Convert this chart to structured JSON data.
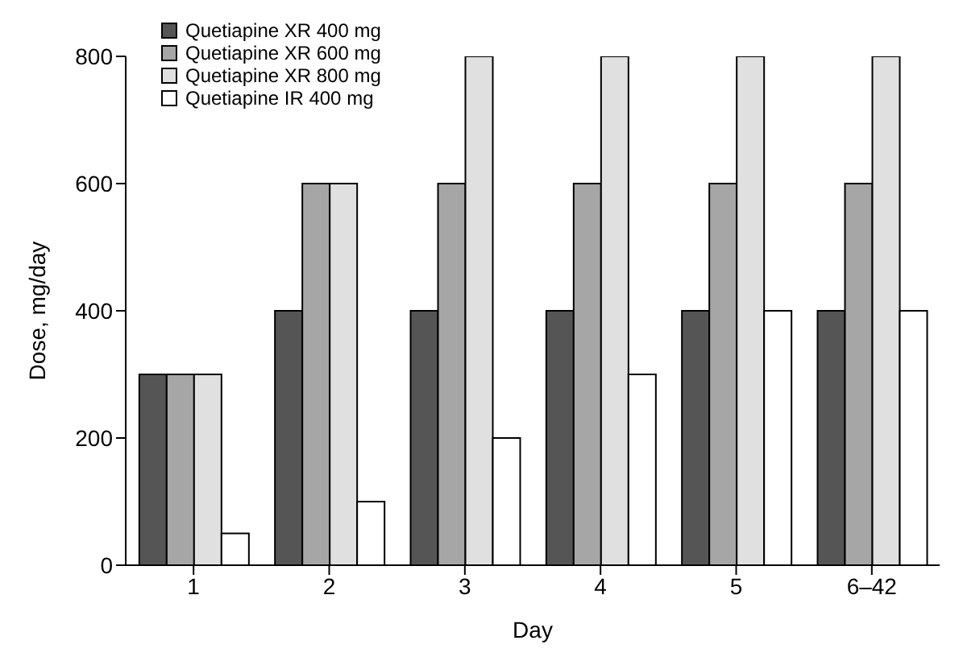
{
  "chart_data": {
    "type": "bar",
    "xlabel": "Day",
    "ylabel": "Dose, mg/day",
    "categories": [
      "1",
      "2",
      "3",
      "4",
      "5",
      "6–42"
    ],
    "series": [
      {
        "name": "Quetiapine XR 400 mg",
        "color": "#555555",
        "values": [
          300,
          400,
          400,
          400,
          400,
          400
        ]
      },
      {
        "name": "Quetiapine XR 600 mg",
        "color": "#a6a6a6",
        "values": [
          300,
          600,
          600,
          600,
          600,
          600
        ]
      },
      {
        "name": "Quetiapine XR 800 mg",
        "color": "#e0e0e0",
        "values": [
          300,
          600,
          800,
          800,
          800,
          800
        ]
      },
      {
        "name": "Quetiapine IR 400 mg",
        "color": "#ffffff",
        "values": [
          50,
          100,
          200,
          300,
          400,
          400
        ]
      }
    ],
    "ylim": [
      0,
      800
    ],
    "yticks": [
      0,
      200,
      400,
      600,
      800
    ],
    "grid": false,
    "legend": "top left"
  }
}
